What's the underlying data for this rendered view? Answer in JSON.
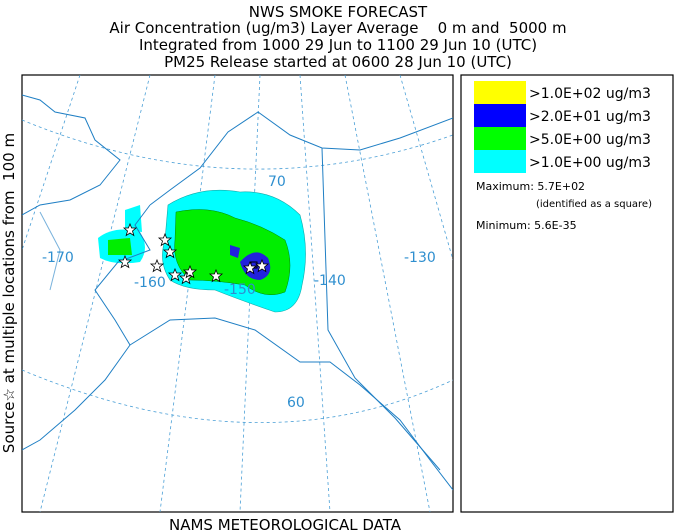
{
  "header": {
    "title": "NWS SMOKE FORECAST",
    "lines": [
      "Air Concentration (ug/m3) Layer Average    0 m and  5000 m",
      "Integrated from 1000 29 Jun to 1100 29 Jun 10 (UTC)",
      "PM25 Release started at 0600 28 Jun 10 (UTC)"
    ]
  },
  "side_label": "Source☆ at multiple locations from  100 m",
  "map": {
    "grid_labels": [
      "70",
      "-170",
      "-160",
      "-150",
      "-140",
      "-130",
      "60"
    ]
  },
  "legend": {
    "items": [
      {
        "label": ">1.0E+02 ug/m3",
        "color": "#ffff00"
      },
      {
        "label": ">2.0E+01 ug/m3",
        "color": "#0000ff"
      },
      {
        "label": ">5.0E+00 ug/m3",
        "color": "#00ff00"
      },
      {
        "label": ">1.0E+00 ug/m3",
        "color": "#00ffff"
      }
    ],
    "maximum": "Maximum: 5.7E+02",
    "maximum_note": "(identified as a square)",
    "minimum": "Minimum: 5.6E-35"
  },
  "footer": "NAMS METEOROLOGICAL DATA"
}
